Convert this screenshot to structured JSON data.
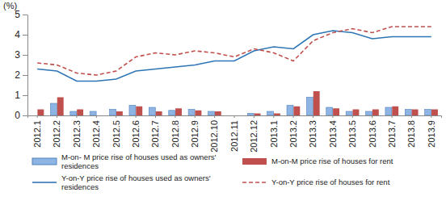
{
  "chart_data": {
    "type": "bar",
    "ylabel": "(%)",
    "categories": [
      "2012.1",
      "2012.2",
      "2012.3",
      "2012.4",
      "2012.5",
      "2012.6",
      "2012.7",
      "2012.8",
      "2012.9",
      "2012.10",
      "2012.11",
      "2012.12",
      "2013.1",
      "2013.2",
      "2013.3",
      "2013.4",
      "2013.5",
      "2013.6",
      "2013.7",
      "2013.8",
      "2013.9"
    ],
    "ylim": [
      0,
      5
    ],
    "yticks": [
      0,
      1,
      2,
      3,
      4,
      5
    ],
    "grid": false,
    "legend": "bottom",
    "series": [
      {
        "name": "M-on- M price rise of houses used as owners' residences",
        "type": "bar",
        "color": "#8eb4e3",
        "values": [
          0,
          0.6,
          0.2,
          0.2,
          0.3,
          0.5,
          0.4,
          0.25,
          0.3,
          0.2,
          0,
          0.1,
          0.2,
          0.5,
          0.9,
          0.4,
          0.2,
          0.2,
          0.4,
          0.3,
          0.3
        ]
      },
      {
        "name": "M-on-M price rise of houses for rent",
        "type": "bar",
        "color": "#c0504d",
        "values": [
          0.3,
          0.9,
          0.3,
          0,
          0.2,
          0.45,
          0.2,
          0.35,
          0.25,
          0.2,
          0,
          0.1,
          0.1,
          0.45,
          1.2,
          0.35,
          0.3,
          0.3,
          0.45,
          0.3,
          0.3
        ]
      },
      {
        "name": "Y-on-Y price rise of houses used as owners' residences",
        "type": "line",
        "color": "#2e75b6",
        "line_style": "solid",
        "values": [
          2.3,
          2.2,
          1.7,
          1.7,
          1.8,
          2.2,
          2.3,
          2.4,
          2.5,
          2.7,
          2.7,
          3.2,
          3.4,
          3.3,
          4.0,
          4.2,
          4.1,
          3.8,
          3.9,
          3.9,
          3.9
        ]
      },
      {
        "name": "Y-on-Y price rise of houses for rent",
        "type": "line",
        "color": "#c0504d",
        "line_style": "dashed",
        "values": [
          2.6,
          2.5,
          2.1,
          2.0,
          2.2,
          2.9,
          3.1,
          3.0,
          3.2,
          3.1,
          2.9,
          3.3,
          3.1,
          2.7,
          3.7,
          4.1,
          4.3,
          4.1,
          4.4,
          4.4,
          4.4
        ]
      }
    ]
  }
}
